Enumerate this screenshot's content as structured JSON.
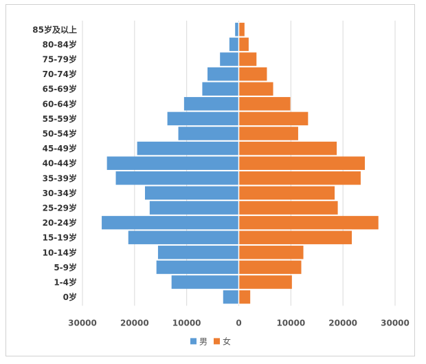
{
  "chart_data": {
    "type": "bar",
    "orientation": "horizontal",
    "layout": "population-pyramid",
    "title": "",
    "xlabel": "",
    "ylabel": "",
    "xlim": [
      -30000,
      30000
    ],
    "x_ticks": [
      -30000,
      -20000,
      -10000,
      0,
      10000,
      20000,
      30000
    ],
    "x_tick_labels": [
      "30000",
      "20000",
      "10000",
      "0",
      "10000",
      "20000",
      "30000"
    ],
    "grid": "vertical",
    "legend_position": "bottom",
    "categories": [
      "0岁",
      "1-4岁",
      "5-9岁",
      "10-14岁",
      "15-19岁",
      "20-24岁",
      "25-29岁",
      "30-34岁",
      "35-39岁",
      "40-44岁",
      "45-49岁",
      "50-54岁",
      "55-59岁",
      "60-64岁",
      "65-69岁",
      "70-74岁",
      "75-79岁",
      "80-84岁",
      "85岁及以上"
    ],
    "series": [
      {
        "name": "男",
        "color": "#5b9bd5",
        "side": "left",
        "values": [
          3000,
          12900,
          15800,
          15500,
          21200,
          26300,
          17100,
          18000,
          23600,
          25300,
          19500,
          11600,
          13700,
          10500,
          7000,
          6000,
          3600,
          1800,
          700
        ]
      },
      {
        "name": "女",
        "color": "#ed7d31",
        "side": "right",
        "values": [
          2200,
          10200,
          12000,
          12400,
          21700,
          26800,
          19000,
          18400,
          23400,
          24200,
          18800,
          11400,
          13300,
          9900,
          6600,
          5400,
          3400,
          1900,
          1100
        ]
      }
    ]
  }
}
